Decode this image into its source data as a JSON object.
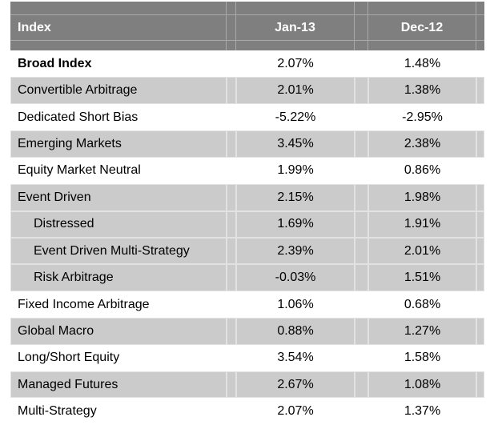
{
  "chart_data": {
    "type": "table",
    "columns": [
      "Index",
      "Jan-13",
      "Dec-12"
    ],
    "rows": [
      [
        "Broad Index",
        "2.07%",
        "1.48%"
      ],
      [
        "Convertible Arbitrage",
        "2.01%",
        "1.38%"
      ],
      [
        "Dedicated Short Bias",
        "-5.22%",
        "-2.95%"
      ],
      [
        "Emerging Markets",
        "3.45%",
        "2.38%"
      ],
      [
        "Equity Market Neutral",
        "1.99%",
        "0.86%"
      ],
      [
        "Event Driven",
        "2.15%",
        "1.98%"
      ],
      [
        "Distressed",
        "1.69%",
        "1.91%"
      ],
      [
        "Event Driven Multi-Strategy",
        "2.39%",
        "2.01%"
      ],
      [
        "Risk Arbitrage",
        "-0.03%",
        "1.51%"
      ],
      [
        "Fixed Income Arbitrage",
        "1.06%",
        "0.68%"
      ],
      [
        "Global Macro",
        "0.88%",
        "1.27%"
      ],
      [
        "Long/Short Equity",
        "3.54%",
        "1.58%"
      ],
      [
        "Managed Futures",
        "2.67%",
        "1.08%"
      ],
      [
        "Multi-Strategy",
        "2.07%",
        "1.37%"
      ]
    ],
    "layout_hints": {
      "bold_rows": [
        "Broad Index"
      ],
      "indented_rows": [
        "Distressed",
        "Event Driven Multi-Strategy",
        "Risk Arbitrage"
      ],
      "shaded_rows": [
        "Convertible Arbitrage",
        "Emerging Markets",
        "Event Driven",
        "Distressed",
        "Event Driven Multi-Strategy",
        "Risk Arbitrage",
        "Global Macro",
        "Managed Futures"
      ]
    }
  },
  "colors": {
    "header_bg": "#7f7f7f",
    "header_text": "#ffffff",
    "header_gridline": "#a9a9a9",
    "shaded_row_bg": "#cbcbcb",
    "row_gridline": "#e2e2e2",
    "text": "#000000"
  }
}
